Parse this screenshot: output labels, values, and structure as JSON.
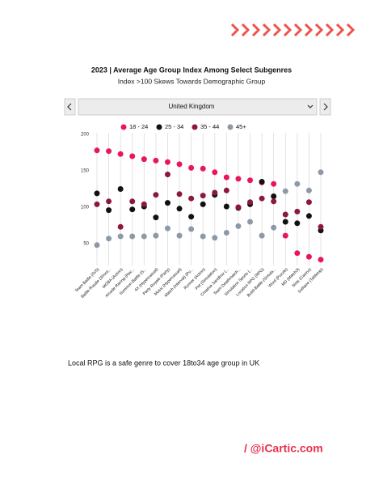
{
  "chart_data": {
    "type": "dot",
    "title": "2023 | Average Age Group Index Among Select Subgenres",
    "subtitle": "Index  >100 Skews Towards Demographic Group",
    "categories": [
      "Team Battle (5V5)",
      "Battle Royale (Shoot...",
      "MOBA (Action)",
      "Arcade Racing (Rac...",
      "Summon Battle (S...",
      "4X (Hypercasual)",
      "Party Royale (Party)",
      "Music (Hypercasual)",
      "Match (Interval) (Pu...",
      "Runner (Action)",
      "Pet (Simulation)",
      "Creative Sandbox (...",
      "Team Deathmatch...",
      "Simulation Sports (...",
      "Location RPG (RPG)",
      "Build-Battle (Simula...",
      "Word (Puzzle)",
      "MD (Match3)",
      "Slots (Casino)",
      "Solitaire (Tabletop)"
    ],
    "series": [
      {
        "name": "18 - 24",
        "color": "#e8175d",
        "values": [
          178,
          177,
          173,
          170,
          166,
          164,
          162,
          159,
          154,
          153,
          148,
          141,
          139,
          137,
          134,
          132,
          61,
          37,
          32,
          28
        ]
      },
      {
        "name": "25 - 34",
        "color": "#111111",
        "values": [
          119,
          96,
          125,
          97,
          101,
          86,
          106,
          98,
          87,
          104,
          117,
          101,
          99,
          104,
          135,
          115,
          80,
          78,
          88,
          68
        ]
      },
      {
        "name": "35 - 44",
        "color": "#8b1a3a",
        "values": [
          104,
          108,
          73,
          108,
          104,
          117,
          145,
          118,
          112,
          116,
          120,
          123,
          100,
          107,
          112,
          108,
          90,
          94,
          107,
          73
        ]
      },
      {
        "name": "45+",
        "color": "#8e99a8",
        "values": [
          48,
          57,
          60,
          60,
          60,
          61,
          71,
          61,
          70,
          60,
          58,
          65,
          74,
          80,
          61,
          72,
          122,
          132,
          123,
          148
        ]
      }
    ],
    "ylim": [
      20,
      200
    ],
    "yticks": [
      50,
      100,
      150,
      200
    ],
    "grid": true
  },
  "selector": "United Kingdom",
  "note": "Local RPG is a safe genre to cover 18to34 age group in UK",
  "brand": "/ @iCartic.com"
}
